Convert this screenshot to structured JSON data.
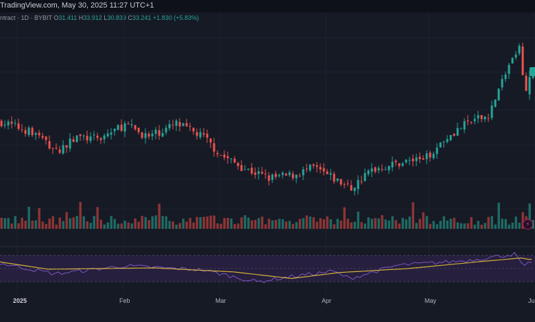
{
  "header": {
    "source_line": "TradingView.com, May 30, 2025 11:27 UTC+1"
  },
  "legend": {
    "prefix": "ntract · 1D · BYBIT",
    "o_label": "O",
    "o_value": "31.411",
    "h_label": "H",
    "h_value": "33.912",
    "l_label": "L",
    "l_value": "30.839",
    "c_label": "C",
    "c_value": "33.241",
    "change": "+1.830 (+5.83%)"
  },
  "xaxis": {
    "labels": [
      "2025",
      "Feb",
      "Mar",
      "Apr",
      "May",
      "Jun"
    ]
  },
  "icons": {
    "flash": "lightning-icon"
  },
  "colors": {
    "up": "#26a69a",
    "down": "#ef5350",
    "rsi_line": "#7e57c2",
    "rsi_ma": "#d4b13a",
    "rsi_band": "#2a2145"
  },
  "chart_data": {
    "type": "candlestick",
    "interval": "1D",
    "exchange": "BYBIT",
    "x_range": [
      "2024-12-27",
      "2025-06-01"
    ],
    "y_range_approx": [
      19,
      37
    ],
    "price_path": [
      {
        "date": "2024-12-27",
        "close": 28.5
      },
      {
        "date": "2025-01-06",
        "close": 27.3
      },
      {
        "date": "2025-01-12",
        "close": 25.4
      },
      {
        "date": "2025-01-18",
        "close": 26.9
      },
      {
        "date": "2025-01-24",
        "close": 26.7
      },
      {
        "date": "2025-02-01",
        "close": 28.2
      },
      {
        "date": "2025-02-08",
        "close": 26.9
      },
      {
        "date": "2025-02-16",
        "close": 28.3
      },
      {
        "date": "2025-02-24",
        "close": 26.9
      },
      {
        "date": "2025-03-01",
        "close": 25.0
      },
      {
        "date": "2025-03-08",
        "close": 23.6
      },
      {
        "date": "2025-03-15",
        "close": 22.6
      },
      {
        "date": "2025-03-22",
        "close": 22.9
      },
      {
        "date": "2025-03-28",
        "close": 23.7
      },
      {
        "date": "2025-04-03",
        "close": 22.5
      },
      {
        "date": "2025-04-08",
        "close": 21.5
      },
      {
        "date": "2025-04-14",
        "close": 23.5
      },
      {
        "date": "2025-04-22",
        "close": 24.2
      },
      {
        "date": "2025-04-30",
        "close": 24.8
      },
      {
        "date": "2025-05-06",
        "close": 27.0
      },
      {
        "date": "2025-05-12",
        "close": 28.4
      },
      {
        "date": "2025-05-18",
        "close": 29.2
      },
      {
        "date": "2025-05-24",
        "close": 34.5
      },
      {
        "date": "2025-05-27",
        "close": 36.2
      },
      {
        "date": "2025-05-29",
        "close": 31.4
      },
      {
        "date": "2025-05-30",
        "close": 33.241
      }
    ],
    "last_candle": {
      "open": 31.411,
      "high": 33.912,
      "low": 30.839,
      "close": 33.241,
      "change": 1.83,
      "change_pct": 5.83
    },
    "volume_relative": "bars 0-1 scale; spikes around late Jan/early Feb, early Apr, late May",
    "rsi": {
      "range": [
        20,
        80
      ],
      "band": [
        30,
        70
      ],
      "path": [
        {
          "date": "2024-12-27",
          "value": 58
        },
        {
          "date": "2025-01-12",
          "value": 42
        },
        {
          "date": "2025-02-01",
          "value": 54
        },
        {
          "date": "2025-02-24",
          "value": 48
        },
        {
          "date": "2025-03-12",
          "value": 30
        },
        {
          "date": "2025-03-22",
          "value": 38
        },
        {
          "date": "2025-04-03",
          "value": 46
        },
        {
          "date": "2025-04-08",
          "value": 35
        },
        {
          "date": "2025-04-22",
          "value": 55
        },
        {
          "date": "2025-05-12",
          "value": 62
        },
        {
          "date": "2025-05-26",
          "value": 72
        },
        {
          "date": "2025-05-29",
          "value": 52
        },
        {
          "date": "2025-05-30",
          "value": 57
        }
      ],
      "ma_path": [
        {
          "date": "2024-12-27",
          "value": 60
        },
        {
          "date": "2025-01-10",
          "value": 49
        },
        {
          "date": "2025-02-10",
          "value": 51
        },
        {
          "date": "2025-03-05",
          "value": 45
        },
        {
          "date": "2025-03-22",
          "value": 35
        },
        {
          "date": "2025-04-05",
          "value": 44
        },
        {
          "date": "2025-04-25",
          "value": 50
        },
        {
          "date": "2025-05-15",
          "value": 60
        },
        {
          "date": "2025-05-28",
          "value": 66
        },
        {
          "date": "2025-05-30",
          "value": 64
        }
      ]
    }
  }
}
